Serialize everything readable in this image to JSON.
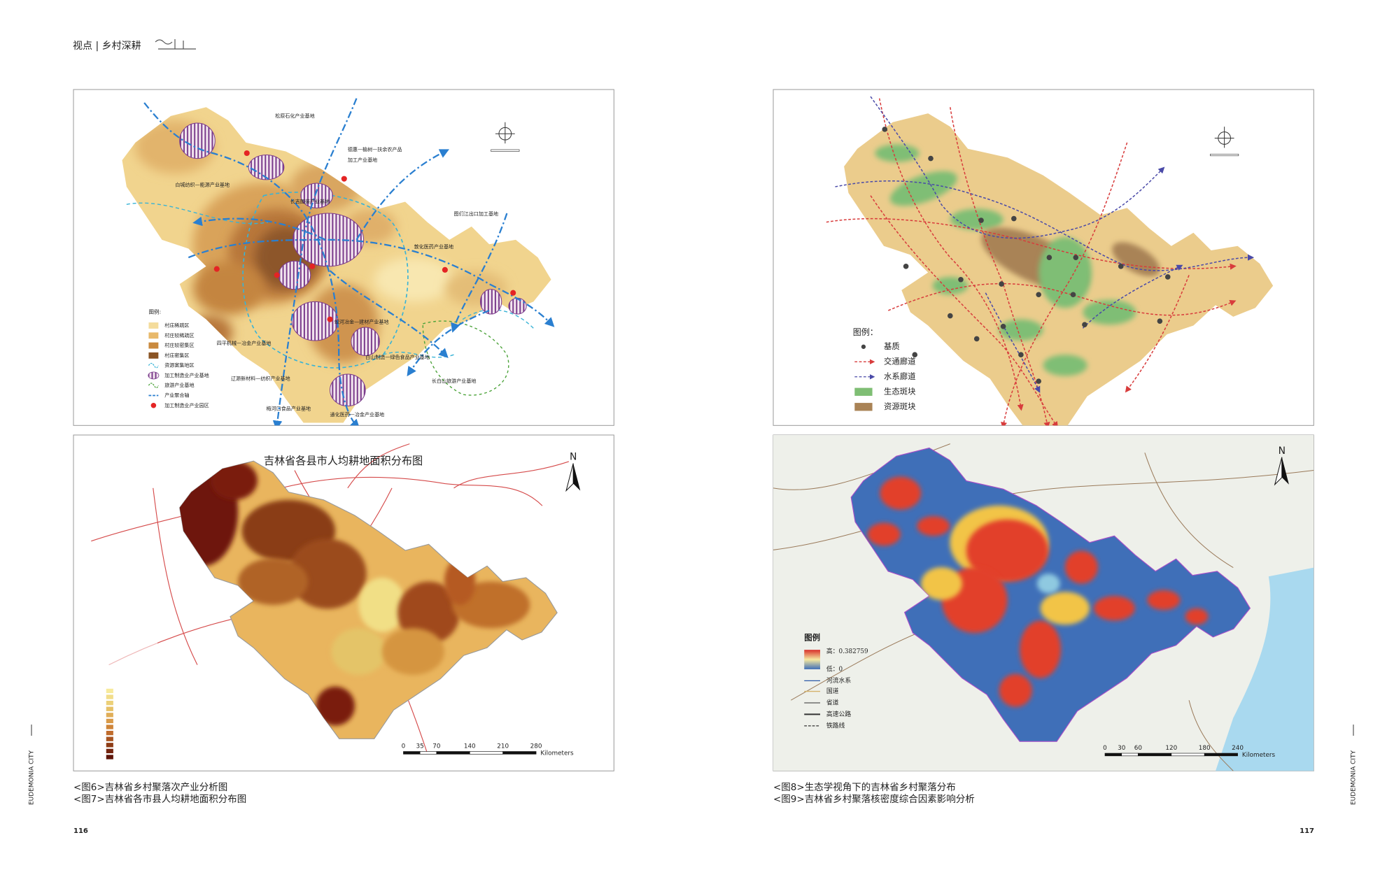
{
  "header": {
    "section": "视点 | 乡村深耕"
  },
  "figures": [
    {
      "labels": [
        "松原石化产业基地",
        "德惠—榆树—扶余农产品",
        "加工产业基地",
        "白城纺织—能源产业基地",
        "长吉图装产业基地",
        "图们江出口加工基地",
        "敦化医药产业基地",
        "四平机械—冶金产业基地",
        "蛟河冶金—建材产业基地",
        "白山制造—绿色食品产业基地",
        "辽源新材料—纺织产业基地",
        "长白山旅游产业基地",
        "梅河口食品产业基地",
        "通化医药—冶金产业基地"
      ],
      "legend_title": "图例:",
      "legend": [
        "村庄稀疏区",
        "村庄较稀疏区",
        "村庄较密集区",
        "村庄密集区",
        "资源富集地区",
        "加工制造业产业基地",
        "旅游产业基地",
        "产业聚合轴",
        "加工制造业产业园区"
      ]
    },
    {
      "legend_title": "图例：",
      "legend": [
        "基质",
        "交通廊道",
        "水系廊道",
        "生态斑块",
        "资源斑块"
      ]
    },
    {
      "title": "吉林省各县市人均耕地面积分布图",
      "north": "N",
      "scale": [
        0,
        35,
        70,
        140,
        210,
        280
      ],
      "scale_unit": "Kilometers"
    },
    {
      "north": "N",
      "legend_title": "图例",
      "legend": [
        "高：0.382759",
        "低：0",
        "河流水系",
        "国道",
        "省道",
        "高速公路",
        "铁路线"
      ],
      "scale": [
        0,
        30,
        60,
        120,
        180,
        240
      ],
      "scale_unit": "Kilometers"
    }
  ],
  "captions": {
    "left": [
      "<图6>吉林省乡村聚落次产业分析图",
      "<图7>吉林省各市县人均耕地面积分布图"
    ],
    "right": [
      "<图8>生态学视角下的吉林省乡村聚落分布",
      "<图9>吉林省乡村聚落核密度综合因素影响分析"
    ]
  },
  "pages": {
    "left": "116",
    "right": "117"
  },
  "side_label": "EUDEMONIA CITY"
}
